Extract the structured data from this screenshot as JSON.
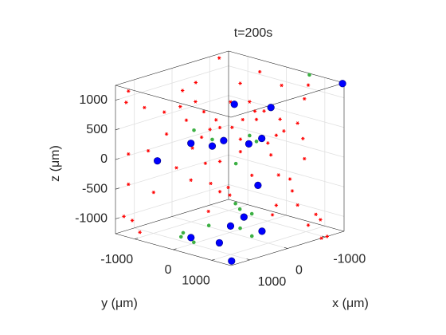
{
  "chart_data": {
    "type": "scatter3d",
    "title": "t=200s",
    "xlabel": "x (μm)",
    "ylabel": "y (μm)",
    "zlabel": "z (μm)",
    "xlim": [
      -1500,
      1500
    ],
    "ylim": [
      -1500,
      1500
    ],
    "zlim": [
      -1250,
      1250
    ],
    "xticks": [
      -1000,
      0,
      1000
    ],
    "yticks": [
      -1000,
      0,
      1000
    ],
    "zticks": [
      -1000,
      -500,
      0,
      500,
      1000
    ],
    "grid": true,
    "series": [
      {
        "color": "#ff0000",
        "marker": "star",
        "x": [
          -1200,
          -160,
          -1000,
          -440,
          -680,
          1330,
          1360,
          620,
          450,
          -1030,
          -980,
          1120,
          860,
          650,
          570,
          340,
          180,
          -10,
          -260,
          -330,
          -450,
          -660,
          -890,
          830,
          260,
          130,
          -30,
          -170,
          -350,
          -610,
          -960,
          490,
          370,
          -140,
          -500,
          -710,
          1330,
          1070,
          700,
          320,
          130,
          250,
          130,
          1330,
          1000,
          510,
          -140,
          -540,
          -640,
          -790,
          -980,
          -610,
          -820,
          -890,
          20,
          -290,
          0,
          1390,
          1280,
          -1130,
          -1190,
          -1030,
          -560,
          280,
          1180,
          -900,
          -1050
        ],
        "y": [
          -1450,
          -1040,
          -200,
          -160,
          680,
          -1330,
          -1360,
          -620,
          -450,
          1030,
          980,
          -1120,
          -860,
          -650,
          -570,
          -340,
          -180,
          10,
          260,
          330,
          450,
          660,
          890,
          -830,
          -260,
          -130,
          30,
          170,
          350,
          610,
          960,
          -490,
          -370,
          140,
          500,
          710,
          -1330,
          -1070,
          -700,
          -320,
          -130,
          -250,
          -130,
          -1330,
          -1000,
          -510,
          140,
          540,
          640,
          790,
          980,
          610,
          820,
          890,
          -20,
          290,
          0,
          -1390,
          -1280,
          1130,
          1190,
          1030,
          560,
          -280,
          -1180,
          1500,
          1500
        ],
        "z": [
          1200,
          1060,
          1230,
          1150,
          1220,
          1150,
          960,
          1150,
          960,
          1220,
          990,
          870,
          790,
          880,
          650,
          790,
          650,
          950,
          950,
          790,
          790,
          650,
          580,
          420,
          490,
          520,
          520,
          650,
          650,
          380,
          320,
          180,
          360,
          320,
          250,
          450,
          90,
          140,
          -150,
          -80,
          -50,
          -420,
          -560,
          -420,
          -560,
          -360,
          110,
          50,
          -290,
          -360,
          -20,
          -800,
          -560,
          -800,
          -490,
          -290,
          -620,
          -960,
          -1030,
          -960,
          -1050,
          -1140,
          -960,
          -890,
          -1230,
          -1250,
          -1250
        ]
      },
      {
        "color": "#3cb043",
        "marker": "dot",
        "x": [
          -1500,
          470,
          230,
          -260,
          -80,
          -350,
          -1070,
          -870,
          -810,
          270,
          930,
          1140,
          1230,
          210,
          0
        ],
        "y": [
          600,
          -470,
          -230,
          260,
          80,
          350,
          -900,
          -590,
          -220,
          -280,
          -300,
          -150,
          270,
          780,
          270
        ],
        "z": [
          1225,
          480,
          320,
          380,
          -90,
          280,
          -1130,
          -1130,
          -1130,
          -1130,
          -1130,
          -1130,
          -1130,
          -1130,
          -1130
        ]
      },
      {
        "color": "#0000ff",
        "marker": "circle",
        "x": [
          -1480,
          -60,
          -540,
          510,
          80,
          230,
          -250,
          -420,
          950,
          -370,
          -560,
          20,
          -140,
          1050,
          930,
          1310
        ],
        "y": [
          1480,
          60,
          540,
          -510,
          -80,
          -230,
          250,
          420,
          -950,
          370,
          -180,
          40,
          700,
          20,
          640,
          1330
        ],
        "z": [
          1240,
          910,
          850,
          260,
          300,
          210,
          240,
          330,
          -30,
          -460,
          -1130,
          -1130,
          -1130,
          -1130,
          -1130,
          -1240
        ]
      }
    ]
  }
}
